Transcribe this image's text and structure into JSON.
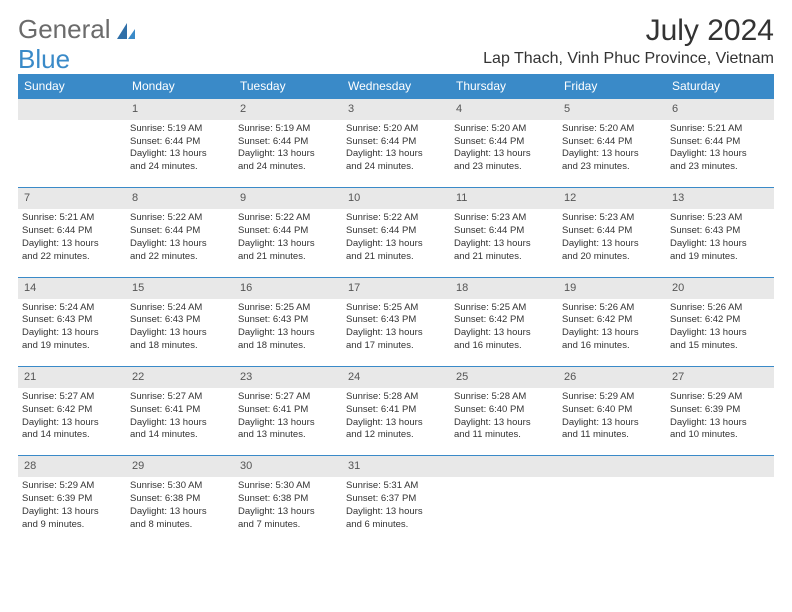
{
  "brand": {
    "part1": "General",
    "part2": "Blue"
  },
  "title": "July 2024",
  "location": "Lap Thach, Vinh Phuc Province, Vietnam",
  "colors": {
    "header_bg": "#3a8ac8",
    "header_text": "#ffffff",
    "daynum_bg": "#e8e8e8",
    "row_divider": "#3a8ac8",
    "text": "#333333",
    "logo_gray": "#6b6b6b",
    "logo_blue": "#3a8ac8",
    "page_bg": "#ffffff"
  },
  "typography": {
    "title_fontsize": 30,
    "location_fontsize": 16,
    "weekday_fontsize": 12,
    "daynum_fontsize": 11,
    "cell_fontsize": 9.5
  },
  "weekdays": [
    "Sunday",
    "Monday",
    "Tuesday",
    "Wednesday",
    "Thursday",
    "Friday",
    "Saturday"
  ],
  "weeks": [
    {
      "nums": [
        "",
        "1",
        "2",
        "3",
        "4",
        "5",
        "6"
      ],
      "cells": [
        null,
        {
          "sunrise": "Sunrise: 5:19 AM",
          "sunset": "Sunset: 6:44 PM",
          "day1": "Daylight: 13 hours",
          "day2": "and 24 minutes."
        },
        {
          "sunrise": "Sunrise: 5:19 AM",
          "sunset": "Sunset: 6:44 PM",
          "day1": "Daylight: 13 hours",
          "day2": "and 24 minutes."
        },
        {
          "sunrise": "Sunrise: 5:20 AM",
          "sunset": "Sunset: 6:44 PM",
          "day1": "Daylight: 13 hours",
          "day2": "and 24 minutes."
        },
        {
          "sunrise": "Sunrise: 5:20 AM",
          "sunset": "Sunset: 6:44 PM",
          "day1": "Daylight: 13 hours",
          "day2": "and 23 minutes."
        },
        {
          "sunrise": "Sunrise: 5:20 AM",
          "sunset": "Sunset: 6:44 PM",
          "day1": "Daylight: 13 hours",
          "day2": "and 23 minutes."
        },
        {
          "sunrise": "Sunrise: 5:21 AM",
          "sunset": "Sunset: 6:44 PM",
          "day1": "Daylight: 13 hours",
          "day2": "and 23 minutes."
        }
      ]
    },
    {
      "nums": [
        "7",
        "8",
        "9",
        "10",
        "11",
        "12",
        "13"
      ],
      "cells": [
        {
          "sunrise": "Sunrise: 5:21 AM",
          "sunset": "Sunset: 6:44 PM",
          "day1": "Daylight: 13 hours",
          "day2": "and 22 minutes."
        },
        {
          "sunrise": "Sunrise: 5:22 AM",
          "sunset": "Sunset: 6:44 PM",
          "day1": "Daylight: 13 hours",
          "day2": "and 22 minutes."
        },
        {
          "sunrise": "Sunrise: 5:22 AM",
          "sunset": "Sunset: 6:44 PM",
          "day1": "Daylight: 13 hours",
          "day2": "and 21 minutes."
        },
        {
          "sunrise": "Sunrise: 5:22 AM",
          "sunset": "Sunset: 6:44 PM",
          "day1": "Daylight: 13 hours",
          "day2": "and 21 minutes."
        },
        {
          "sunrise": "Sunrise: 5:23 AM",
          "sunset": "Sunset: 6:44 PM",
          "day1": "Daylight: 13 hours",
          "day2": "and 21 minutes."
        },
        {
          "sunrise": "Sunrise: 5:23 AM",
          "sunset": "Sunset: 6:44 PM",
          "day1": "Daylight: 13 hours",
          "day2": "and 20 minutes."
        },
        {
          "sunrise": "Sunrise: 5:23 AM",
          "sunset": "Sunset: 6:43 PM",
          "day1": "Daylight: 13 hours",
          "day2": "and 19 minutes."
        }
      ]
    },
    {
      "nums": [
        "14",
        "15",
        "16",
        "17",
        "18",
        "19",
        "20"
      ],
      "cells": [
        {
          "sunrise": "Sunrise: 5:24 AM",
          "sunset": "Sunset: 6:43 PM",
          "day1": "Daylight: 13 hours",
          "day2": "and 19 minutes."
        },
        {
          "sunrise": "Sunrise: 5:24 AM",
          "sunset": "Sunset: 6:43 PM",
          "day1": "Daylight: 13 hours",
          "day2": "and 18 minutes."
        },
        {
          "sunrise": "Sunrise: 5:25 AM",
          "sunset": "Sunset: 6:43 PM",
          "day1": "Daylight: 13 hours",
          "day2": "and 18 minutes."
        },
        {
          "sunrise": "Sunrise: 5:25 AM",
          "sunset": "Sunset: 6:43 PM",
          "day1": "Daylight: 13 hours",
          "day2": "and 17 minutes."
        },
        {
          "sunrise": "Sunrise: 5:25 AM",
          "sunset": "Sunset: 6:42 PM",
          "day1": "Daylight: 13 hours",
          "day2": "and 16 minutes."
        },
        {
          "sunrise": "Sunrise: 5:26 AM",
          "sunset": "Sunset: 6:42 PM",
          "day1": "Daylight: 13 hours",
          "day2": "and 16 minutes."
        },
        {
          "sunrise": "Sunrise: 5:26 AM",
          "sunset": "Sunset: 6:42 PM",
          "day1": "Daylight: 13 hours",
          "day2": "and 15 minutes."
        }
      ]
    },
    {
      "nums": [
        "21",
        "22",
        "23",
        "24",
        "25",
        "26",
        "27"
      ],
      "cells": [
        {
          "sunrise": "Sunrise: 5:27 AM",
          "sunset": "Sunset: 6:42 PM",
          "day1": "Daylight: 13 hours",
          "day2": "and 14 minutes."
        },
        {
          "sunrise": "Sunrise: 5:27 AM",
          "sunset": "Sunset: 6:41 PM",
          "day1": "Daylight: 13 hours",
          "day2": "and 14 minutes."
        },
        {
          "sunrise": "Sunrise: 5:27 AM",
          "sunset": "Sunset: 6:41 PM",
          "day1": "Daylight: 13 hours",
          "day2": "and 13 minutes."
        },
        {
          "sunrise": "Sunrise: 5:28 AM",
          "sunset": "Sunset: 6:41 PM",
          "day1": "Daylight: 13 hours",
          "day2": "and 12 minutes."
        },
        {
          "sunrise": "Sunrise: 5:28 AM",
          "sunset": "Sunset: 6:40 PM",
          "day1": "Daylight: 13 hours",
          "day2": "and 11 minutes."
        },
        {
          "sunrise": "Sunrise: 5:29 AM",
          "sunset": "Sunset: 6:40 PM",
          "day1": "Daylight: 13 hours",
          "day2": "and 11 minutes."
        },
        {
          "sunrise": "Sunrise: 5:29 AM",
          "sunset": "Sunset: 6:39 PM",
          "day1": "Daylight: 13 hours",
          "day2": "and 10 minutes."
        }
      ]
    },
    {
      "nums": [
        "28",
        "29",
        "30",
        "31",
        "",
        "",
        ""
      ],
      "cells": [
        {
          "sunrise": "Sunrise: 5:29 AM",
          "sunset": "Sunset: 6:39 PM",
          "day1": "Daylight: 13 hours",
          "day2": "and 9 minutes."
        },
        {
          "sunrise": "Sunrise: 5:30 AM",
          "sunset": "Sunset: 6:38 PM",
          "day1": "Daylight: 13 hours",
          "day2": "and 8 minutes."
        },
        {
          "sunrise": "Sunrise: 5:30 AM",
          "sunset": "Sunset: 6:38 PM",
          "day1": "Daylight: 13 hours",
          "day2": "and 7 minutes."
        },
        {
          "sunrise": "Sunrise: 5:31 AM",
          "sunset": "Sunset: 6:37 PM",
          "day1": "Daylight: 13 hours",
          "day2": "and 6 minutes."
        },
        null,
        null,
        null
      ]
    }
  ]
}
